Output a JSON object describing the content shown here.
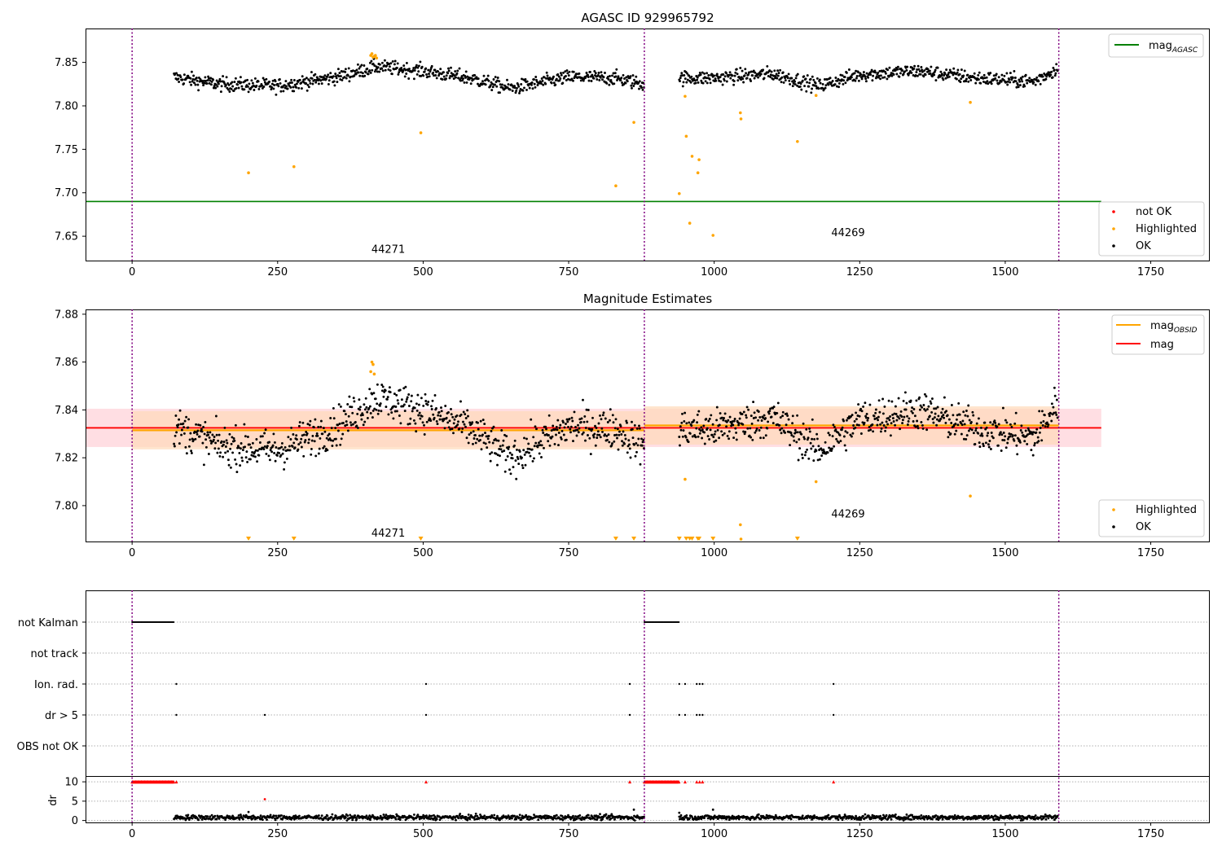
{
  "figure": {
    "panel1_title": "AGASC ID 929965792",
    "panel2_title": "Magnitude Estimates"
  },
  "colors": {
    "ok": "#000000",
    "highlighted": "#ffa500",
    "not_ok": "#ff0000",
    "mag_agasc_line": "#008000",
    "mag_obsid_line": "#ffa500",
    "mag_line": "#ff0000",
    "mag_band": "#ffb6c1",
    "obsid_band": "#ffdab9",
    "obsid_divider": "#800080",
    "grid": "#b0b0b0"
  },
  "chart_data": [
    {
      "type": "scatter",
      "title": "AGASC ID 929965792",
      "xlabel": "",
      "ylabel": "",
      "xlim": [
        -80,
        1850
      ],
      "ylim": [
        7.622,
        7.889
      ],
      "xticks": [
        0,
        250,
        500,
        750,
        1000,
        1250,
        1500,
        1750
      ],
      "yticks": [
        7.65,
        7.7,
        7.75,
        7.8,
        7.85
      ],
      "xtick_labels": [
        "0",
        "250",
        "500",
        "750",
        "1000",
        "1250",
        "1500",
        "1750"
      ],
      "ytick_labels": [
        "7.65",
        "7.70",
        "7.75",
        "7.80",
        "7.85"
      ],
      "grid": false,
      "obsid_boundaries": [
        0,
        880,
        1592
      ],
      "obsid_labels": [
        {
          "text": "44271",
          "x": 440,
          "y": 7.631
        },
        {
          "text": "44269",
          "x": 1230,
          "y": 7.65
        }
      ],
      "hlines": [
        {
          "name": "mag_{AGASC}",
          "y": 7.69,
          "x": [
            -80,
            1665
          ],
          "color": "#008000"
        }
      ],
      "legend_upper": {
        "position": "top-right",
        "entries": [
          {
            "label": "mag",
            "sub": "AGASC",
            "color": "#008000",
            "kind": "line"
          }
        ]
      },
      "legend_lower": {
        "position": "lower-right",
        "entries": [
          {
            "label": "not OK",
            "color": "#ff0000",
            "kind": "dot"
          },
          {
            "label": "Highlighted",
            "color": "#ffa500",
            "kind": "dot"
          },
          {
            "label": "OK",
            "color": "#000000",
            "kind": "dot"
          }
        ]
      },
      "series": [
        {
          "name": "Highlighted",
          "points": [
            [
              200,
              7.723
            ],
            [
              278,
              7.73
            ],
            [
              496,
              7.769
            ],
            [
              831,
              7.708
            ],
            [
              862,
              7.781
            ],
            [
              940,
              7.699
            ],
            [
              950,
              7.811
            ],
            [
              952,
              7.765
            ],
            [
              958,
              7.665
            ],
            [
              962,
              7.742
            ],
            [
              972,
              7.723
            ],
            [
              974,
              7.738
            ],
            [
              998,
              7.651
            ],
            [
              1045,
              7.792
            ],
            [
              1046,
              7.785
            ],
            [
              1143,
              7.759
            ],
            [
              1175,
              7.812
            ],
            [
              1440,
              7.804
            ],
            [
              410,
              7.858
            ],
            [
              412,
              7.86
            ],
            [
              414,
              7.856
            ],
            [
              416,
              7.857
            ],
            [
              418,
              7.858
            ],
            [
              420,
              7.855
            ]
          ]
        }
      ],
      "ok_bands": [
        {
          "x": [
            72,
            880
          ],
          "anchors": [
            [
              72,
              7.833
            ],
            [
              150,
              7.825
            ],
            [
              250,
              7.823
            ],
            [
              350,
              7.833
            ],
            [
              420,
              7.845
            ],
            [
              500,
              7.84
            ],
            [
              580,
              7.832
            ],
            [
              650,
              7.82
            ],
            [
              750,
              7.833
            ],
            [
              830,
              7.832
            ],
            [
              880,
              7.825
            ]
          ],
          "spread": 0.009
        },
        {
          "x": [
            940,
            1590
          ],
          "anchors": [
            [
              940,
              7.832
            ],
            [
              1000,
              7.832
            ],
            [
              1100,
              7.837
            ],
            [
              1180,
              7.823
            ],
            [
              1250,
              7.836
            ],
            [
              1350,
              7.84
            ],
            [
              1450,
              7.832
            ],
            [
              1550,
              7.828
            ],
            [
              1590,
              7.843
            ]
          ],
          "spread": 0.009
        }
      ]
    },
    {
      "type": "scatter",
      "title": "Magnitude Estimates",
      "xlabel": "",
      "ylabel": "",
      "xlim": [
        -80,
        1850
      ],
      "ylim": [
        7.785,
        7.882
      ],
      "xticks": [
        0,
        250,
        500,
        750,
        1000,
        1250,
        1500,
        1750
      ],
      "yticks": [
        7.8,
        7.82,
        7.84,
        7.86,
        7.88
      ],
      "xtick_labels": [
        "0",
        "250",
        "500",
        "750",
        "1000",
        "1250",
        "1500",
        "1750"
      ],
      "ytick_labels": [
        "7.80",
        "7.82",
        "7.84",
        "7.86",
        "7.88"
      ],
      "grid": false,
      "obsid_boundaries": [
        0,
        880,
        1592
      ],
      "obsid_labels": [
        {
          "text": "44271",
          "x": 440,
          "y": 7.787
        },
        {
          "text": "44269",
          "x": 1230,
          "y": 7.795
        }
      ],
      "mag": {
        "name": "mag",
        "value": 7.8325,
        "band": [
          7.8245,
          7.8405
        ],
        "x": [
          -80,
          1665
        ],
        "color": "#ff0000"
      },
      "mag_obsid": [
        {
          "x": [
            0,
            880
          ],
          "value": 7.8315,
          "band": [
            7.8235,
            7.8395
          ]
        },
        {
          "x": [
            880,
            1592
          ],
          "value": 7.8335,
          "band": [
            7.8255,
            7.8415
          ]
        }
      ],
      "legend_upper": {
        "position": "top-right",
        "entries": [
          {
            "label": "mag",
            "sub": "OBSID",
            "color": "#ffa500",
            "kind": "line"
          },
          {
            "label": "mag",
            "sub": "",
            "color": "#ff0000",
            "kind": "line"
          }
        ]
      },
      "legend_lower": {
        "position": "lower-right",
        "entries": [
          {
            "label": "Highlighted",
            "color": "#ffa500",
            "kind": "dot"
          },
          {
            "label": "OK",
            "color": "#000000",
            "kind": "dot"
          }
        ]
      },
      "series": [
        {
          "name": "Highlighted",
          "points": [
            [
              950,
              7.811
            ],
            [
              1045,
              7.792
            ],
            [
              1175,
              7.81
            ],
            [
              1440,
              7.804
            ],
            [
              410,
              7.856
            ],
            [
              412,
              7.86
            ],
            [
              414,
              7.859
            ],
            [
              416,
              7.855
            ],
            [
              1046,
              7.786
            ]
          ]
        },
        {
          "name": "Highlighted (off-scale below)",
          "points": [
            [
              200,
              7.786
            ],
            [
              278,
              7.786
            ],
            [
              496,
              7.786
            ],
            [
              831,
              7.786
            ],
            [
              862,
              7.786
            ],
            [
              940,
              7.786
            ],
            [
              952,
              7.786
            ],
            [
              958,
              7.786
            ],
            [
              962,
              7.786
            ],
            [
              972,
              7.786
            ],
            [
              974,
              7.786
            ],
            [
              998,
              7.786
            ],
            [
              1143,
              7.786
            ]
          ]
        }
      ],
      "ok_bands": [
        {
          "x": [
            72,
            880
          ],
          "anchors": [
            [
              72,
              7.833
            ],
            [
              150,
              7.825
            ],
            [
              250,
              7.823
            ],
            [
              350,
              7.833
            ],
            [
              420,
              7.845
            ],
            [
              500,
              7.84
            ],
            [
              580,
              7.832
            ],
            [
              650,
              7.82
            ],
            [
              750,
              7.833
            ],
            [
              830,
              7.832
            ],
            [
              880,
              7.825
            ]
          ],
          "spread": 0.009
        },
        {
          "x": [
            940,
            1590
          ],
          "anchors": [
            [
              940,
              7.832
            ],
            [
              1000,
              7.832
            ],
            [
              1100,
              7.837
            ],
            [
              1180,
              7.823
            ],
            [
              1250,
              7.836
            ],
            [
              1350,
              7.84
            ],
            [
              1450,
              7.832
            ],
            [
              1550,
              7.828
            ],
            [
              1590,
              7.843
            ]
          ],
          "spread": 0.009
        }
      ]
    },
    {
      "type": "scatter",
      "title": "",
      "xlabel": "",
      "ylabel": "",
      "xlim": [
        -80,
        1850
      ],
      "categories": [
        "not Kalman",
        "not track",
        "Ion. rad.",
        "dr > 5",
        "OBS not OK"
      ],
      "grid": true,
      "obsid_boundaries": [
        0,
        880,
        1592
      ],
      "flags": {
        "not Kalman": {
          "ranges": [
            [
              0,
              72
            ],
            [
              880,
              940
            ]
          ]
        },
        "not track": {
          "points": []
        },
        "Ion. rad.": {
          "points": [
            76,
            505,
            855,
            940,
            950,
            970,
            975,
            980,
            1205
          ]
        },
        "dr > 5": {
          "points": [
            76,
            228,
            505,
            855,
            940,
            950,
            970,
            975,
            980,
            1205
          ]
        },
        "OBS not OK": {
          "points": []
        }
      }
    },
    {
      "type": "scatter",
      "title": "",
      "xlabel": "",
      "ylabel": "dr",
      "xlim": [
        -80,
        1850
      ],
      "ylim": [
        -0.5,
        11.5
      ],
      "yticks": [
        0,
        5,
        10
      ],
      "ytick_labels": [
        "0",
        "5",
        "10"
      ],
      "xticks": [
        0,
        250,
        500,
        750,
        1000,
        1250,
        1500,
        1750
      ],
      "xtick_labels": [
        "0",
        "250",
        "500",
        "750",
        "1000",
        "1250",
        "1500",
        "1750"
      ],
      "grid": true,
      "obsid_boundaries": [
        0,
        880,
        1592
      ],
      "dr_ok_bands": [
        {
          "x": [
            72,
            880
          ],
          "level": 0.8,
          "spread": 0.7
        },
        {
          "x": [
            940,
            1590
          ],
          "level": 0.8,
          "spread": 0.7
        }
      ],
      "clipped_at_10": {
        "ranges": [
          [
            0,
            72
          ],
          [
            880,
            940
          ]
        ],
        "points": [
          76,
          505,
          855,
          950,
          970,
          975,
          980,
          1205
        ]
      },
      "dr_outliers": [
        [
          200,
          2.2
        ],
        [
          228,
          5.5
        ],
        [
          862,
          2.8
        ],
        [
          998,
          2.8
        ],
        [
          940,
          2.0
        ]
      ]
    }
  ]
}
